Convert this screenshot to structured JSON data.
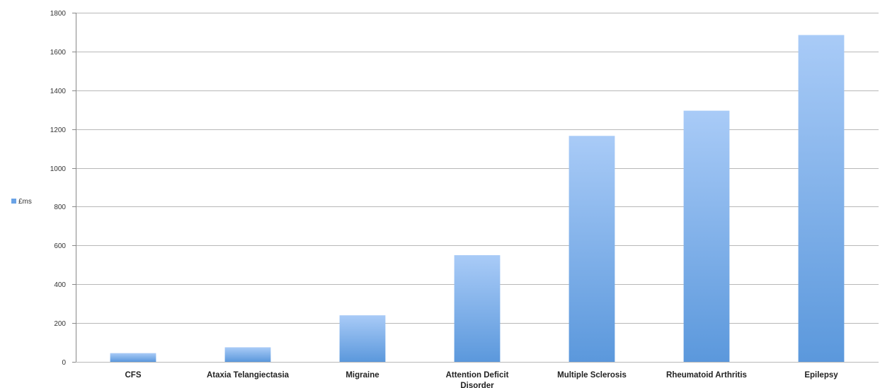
{
  "chart_data": {
    "type": "bar",
    "categories": [
      "CFS",
      "Ataxia Telangiectasia",
      "Migraine",
      "Attention Deficit Disorder",
      "Multiple Sclerosis",
      "Rheumatoid Arthritis",
      "Epilepsy"
    ],
    "series": [
      {
        "name": "£ms",
        "values": [
          45,
          75,
          240,
          550,
          1165,
          1295,
          1685
        ]
      }
    ],
    "ylim": [
      0,
      1800
    ],
    "yticks": [
      0,
      200,
      400,
      600,
      800,
      1000,
      1200,
      1400,
      1600,
      1800
    ],
    "grid": true,
    "legend_position": "left",
    "colors": {
      "bar_top": "#a9cbf7",
      "bar_bottom": "#5b98dc",
      "grid": "#b8b8b8",
      "legend_swatch": "#6aa3e6"
    }
  }
}
